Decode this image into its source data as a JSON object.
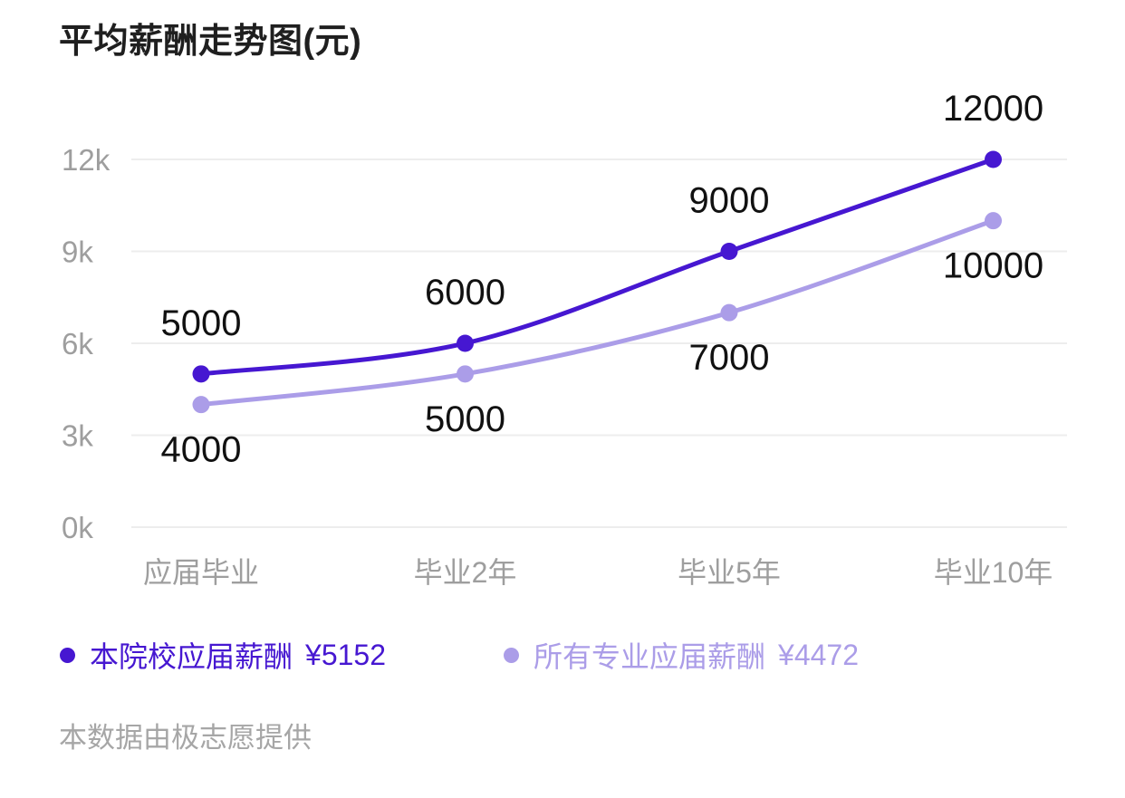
{
  "chart": {
    "title": "平均薪酬走势图(元)"
  },
  "chart_data": {
    "type": "line",
    "title": "平均薪酬走势图(元)",
    "categories": [
      "应届毕业",
      "毕业2年",
      "毕业5年",
      "毕业10年"
    ],
    "series": [
      {
        "name": "本院校应届薪酬",
        "color": "#4617d1",
        "values": [
          5000,
          6000,
          9000,
          12000
        ],
        "data_labels": [
          "5000",
          "6000",
          "9000",
          "12000"
        ],
        "label_position": "above"
      },
      {
        "name": "所有专业应届薪酬",
        "color": "#ab9de8",
        "values": [
          4000,
          5000,
          7000,
          10000
        ],
        "data_labels": [
          "4000",
          "5000",
          "7000",
          "10000"
        ],
        "label_position": "below"
      }
    ],
    "yticks": [
      {
        "value": 0,
        "label": "0k"
      },
      {
        "value": 3000,
        "label": "3k"
      },
      {
        "value": 6000,
        "label": "6k"
      },
      {
        "value": 9000,
        "label": "9k"
      },
      {
        "value": 12000,
        "label": "12k"
      }
    ],
    "ylim": [
      0,
      12000
    ],
    "grid": "horizontal-only",
    "legend_position": "bottom",
    "smooth": true
  },
  "legend": {
    "items": [
      {
        "label": "本院校应届薪酬",
        "value": "¥5152",
        "color": "#4617d1"
      },
      {
        "label": "所有专业应届薪酬",
        "value": "¥4472",
        "color": "#ab9de8"
      }
    ]
  },
  "footer": {
    "text": "本数据由极志愿提供"
  },
  "colors": {
    "series1": "#4617d1",
    "series2": "#ab9de8",
    "gridline": "#ededed",
    "axis_text": "#9e9e9e",
    "data_label_text": "#111111",
    "title_text": "#1f1f1f",
    "footer_text": "#a6a6a6",
    "background": "#ffffff"
  }
}
